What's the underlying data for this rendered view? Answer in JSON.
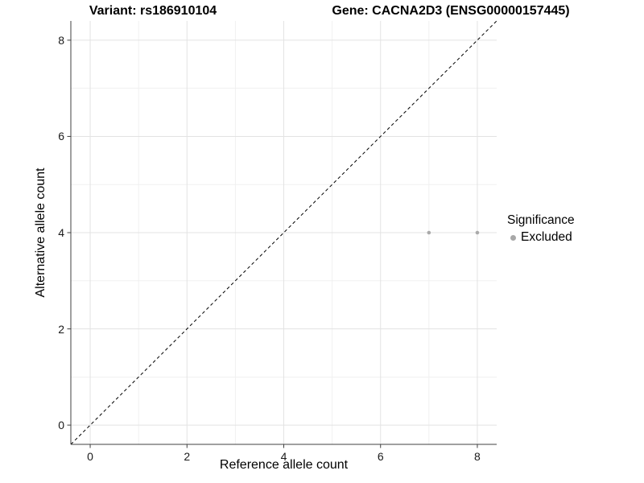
{
  "titles": {
    "variant": "Variant: rs186910104",
    "gene": "Gene: CACNA2D3 (ENSG00000157445)"
  },
  "chart_data": {
    "type": "scatter",
    "title_left": "Variant: rs186910104",
    "title_right": "Gene: CACNA2D3 (ENSG00000157445)",
    "xlabel": "Reference allele count",
    "ylabel": "Alternative allele count",
    "xlim": [
      -0.4,
      8.4
    ],
    "ylim": [
      -0.4,
      8.4
    ],
    "x_ticks": [
      0,
      2,
      4,
      6,
      8
    ],
    "y_ticks": [
      0,
      2,
      4,
      6,
      8
    ],
    "x_minor_ticks": [
      1,
      3,
      5,
      7
    ],
    "y_minor_ticks": [
      1,
      3,
      5,
      7
    ],
    "grid": true,
    "series": [
      {
        "name": "Excluded",
        "color": "#aaaaaa",
        "points": [
          {
            "x": 7,
            "y": 4
          },
          {
            "x": 8,
            "y": 4
          }
        ]
      }
    ],
    "reference_line": {
      "type": "identity",
      "style": "dashed",
      "color": "#000000"
    },
    "legend": {
      "position": "right",
      "title": "Significance",
      "items": [
        {
          "label": "Excluded",
          "color": "#a8a8a8"
        }
      ]
    }
  },
  "colors": {
    "background": "#ffffff",
    "axis_line": "#404040",
    "tick_mark": "#404040",
    "grid_major": "#e3e3e3",
    "grid_minor": "#f0f0f0",
    "point": "#aaaaaa",
    "legend_key": "#a8a8a8"
  }
}
